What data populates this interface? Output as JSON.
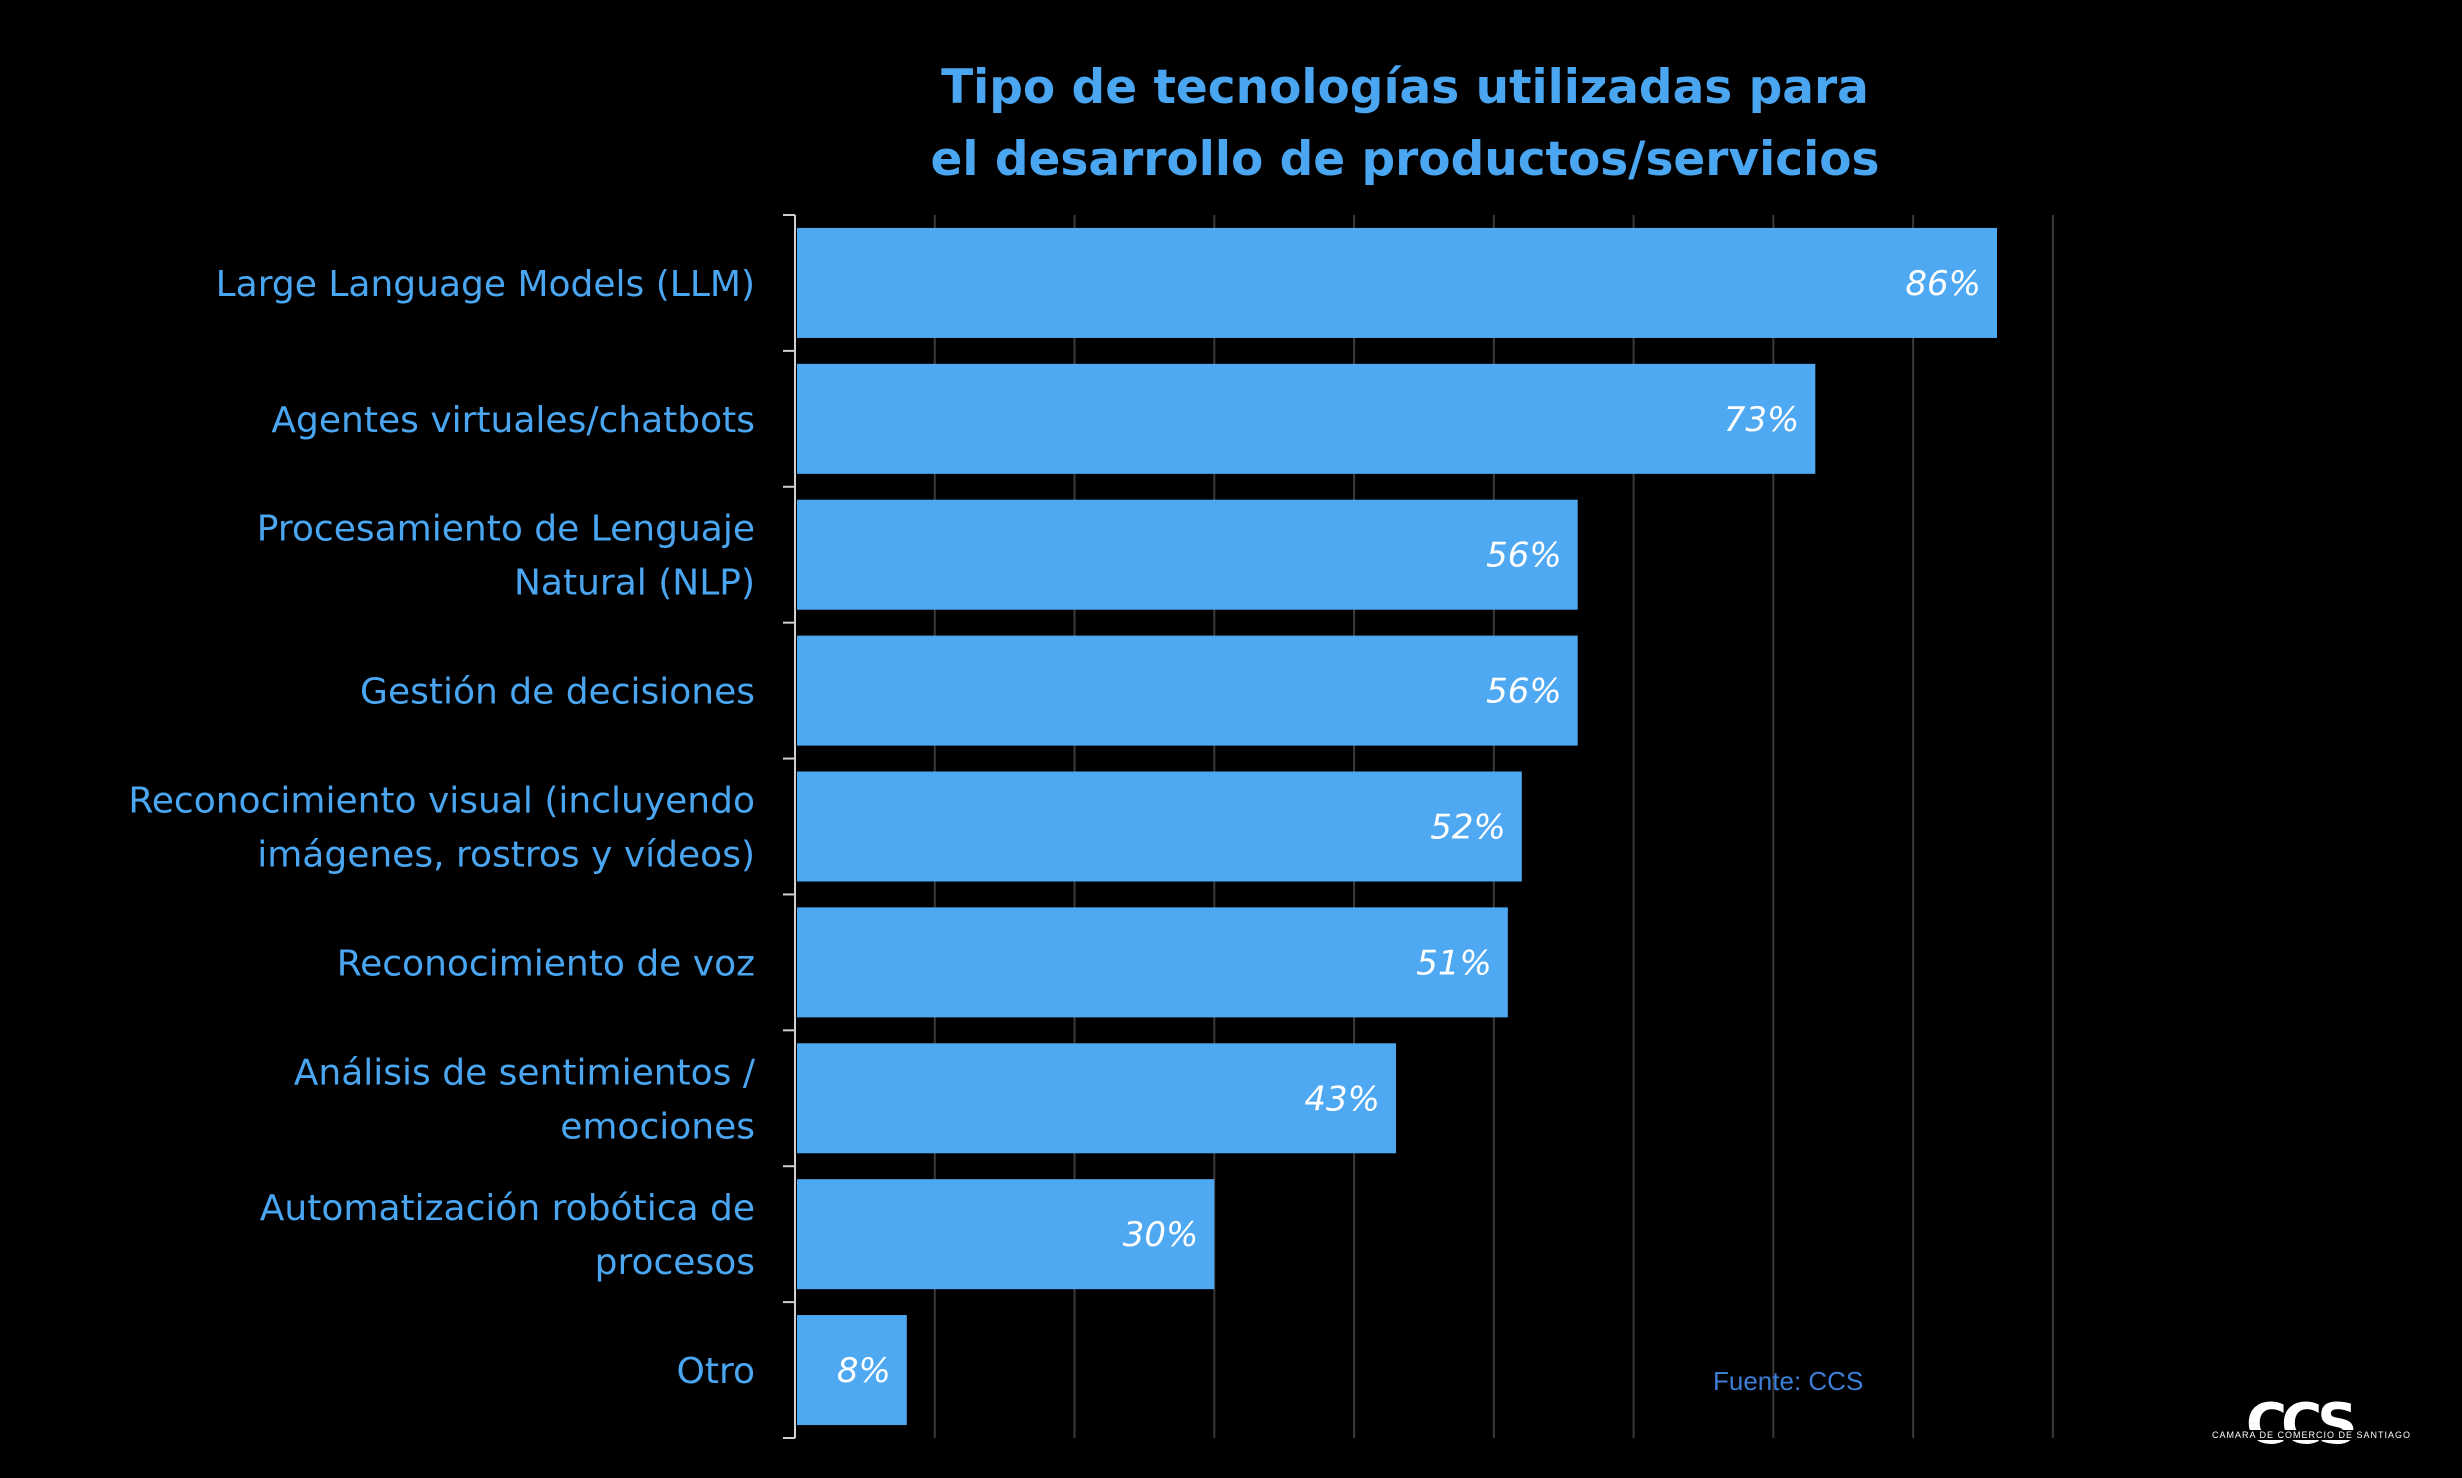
{
  "chart_data": {
    "type": "bar",
    "orientation": "horizontal",
    "title": [
      "Tipo de tecnologías utilizadas para",
      "el desarrollo de productos/servicios"
    ],
    "categories": [
      [
        "Large Language Models (LLM)"
      ],
      [
        "Agentes virtuales/chatbots"
      ],
      [
        "Procesamiento de Lenguaje",
        "Natural (NLP)"
      ],
      [
        "Gestión de decisiones"
      ],
      [
        "Reconocimiento visual (incluyendo",
        "imágenes, rostros y vídeos)"
      ],
      [
        "Reconocimiento de voz"
      ],
      [
        "Análisis de sentimientos /",
        "emociones"
      ],
      [
        "Automatización robótica de",
        "procesos"
      ],
      [
        "Otro"
      ]
    ],
    "values": [
      86,
      73,
      56,
      56,
      52,
      51,
      43,
      30,
      8
    ],
    "value_labels": [
      "86%",
      "73%",
      "56%",
      "56%",
      "52%",
      "51%",
      "43%",
      "30%",
      "8%"
    ],
    "xlim": [
      0,
      90
    ],
    "grid": true,
    "bar_color": "#4ea9f2",
    "text_color": "#4aa6f0",
    "background": "#000000"
  },
  "source": "Fuente: CCS",
  "logo": {
    "text": "CCS",
    "subtitle": "CAMARA DE COMERCIO DE SANTIAGO"
  }
}
